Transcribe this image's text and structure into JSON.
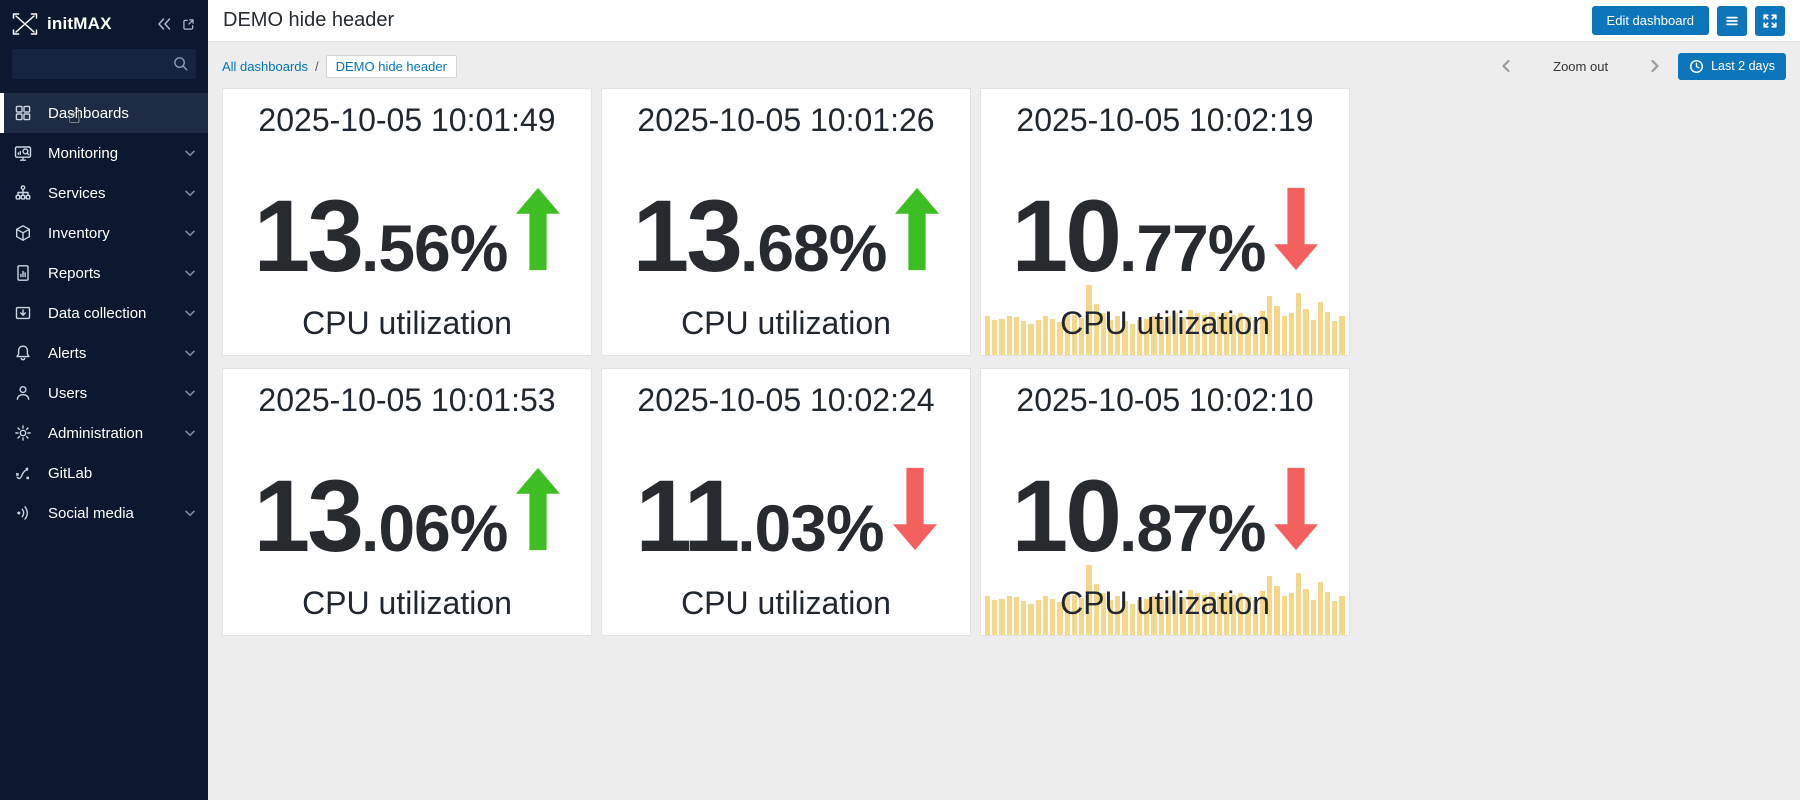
{
  "app": {
    "brand": "initMAX"
  },
  "colors": {
    "accent_blue": "#0d76ba",
    "link_blue": "#0275b8",
    "sidebar_bg": "#0c1830",
    "sidebar_active_bg": "#1d2b44",
    "content_bg": "#ededee",
    "value_text": "#272b30",
    "trend_green": "#3dbe23",
    "trend_red": "#f4605d",
    "bar_yellow": "#f5d78c"
  },
  "sidebar": {
    "search_placeholder": "",
    "items": [
      {
        "label": "Dashboards",
        "icon": "dashboards-icon",
        "active": true,
        "chevron": false
      },
      {
        "label": "Monitoring",
        "icon": "monitoring-icon",
        "active": false,
        "chevron": true
      },
      {
        "label": "Services",
        "icon": "services-icon",
        "active": false,
        "chevron": true
      },
      {
        "label": "Inventory",
        "icon": "inventory-icon",
        "active": false,
        "chevron": true
      },
      {
        "label": "Reports",
        "icon": "reports-icon",
        "active": false,
        "chevron": true
      },
      {
        "label": "Data collection",
        "icon": "data-collection-icon",
        "active": false,
        "chevron": true
      },
      {
        "label": "Alerts",
        "icon": "alerts-icon",
        "active": false,
        "chevron": true
      },
      {
        "label": "Users",
        "icon": "users-icon",
        "active": false,
        "chevron": true
      },
      {
        "label": "Administration",
        "icon": "administration-icon",
        "active": false,
        "chevron": true
      },
      {
        "label": "GitLab",
        "icon": "gitlab-icon",
        "active": false,
        "chevron": false
      },
      {
        "label": "Social media",
        "icon": "social-media-icon",
        "active": false,
        "chevron": true
      }
    ]
  },
  "header": {
    "title": "DEMO hide header",
    "edit_button": "Edit dashboard",
    "icons": [
      "menu-icon",
      "fullscreen-icon"
    ]
  },
  "breadcrumb": {
    "items": [
      "All dashboards",
      "DEMO hide header"
    ],
    "separator": "/"
  },
  "time_controls": {
    "zoom_out": "Zoom out",
    "range_label": "Last 2 days",
    "range_icon": "clock-icon"
  },
  "chart_data": [
    {
      "type": "single-stat",
      "title": "CPU utilization",
      "timestamp": "2025-10-05 10:01:49",
      "value": "13.56",
      "unit": "%",
      "trend": "up",
      "sparkline": false
    },
    {
      "type": "single-stat",
      "title": "CPU utilization",
      "timestamp": "2025-10-05 10:01:26",
      "value": "13.68",
      "unit": "%",
      "trend": "up",
      "sparkline": false
    },
    {
      "type": "single-stat",
      "title": "CPU utilization",
      "timestamp": "2025-10-05 10:02:19",
      "value": "10.77",
      "unit": "%",
      "trend": "down",
      "sparkline": true
    },
    {
      "type": "single-stat",
      "title": "CPU utilization",
      "timestamp": "2025-10-05 10:01:53",
      "value": "13.06",
      "unit": "%",
      "trend": "up",
      "sparkline": false
    },
    {
      "type": "single-stat",
      "title": "CPU utilization",
      "timestamp": "2025-10-05 10:02:24",
      "value": "11.03",
      "unit": "%",
      "trend": "down",
      "sparkline": false
    },
    {
      "type": "single-stat",
      "title": "CPU utilization",
      "timestamp": "2025-10-05 10:02:10",
      "value": "10.87",
      "unit": "%",
      "trend": "down",
      "sparkline": true
    }
  ],
  "sparkline": {
    "type": "bar",
    "color": "#f5d78c",
    "values": [
      0.56,
      0.5,
      0.52,
      0.56,
      0.54,
      0.48,
      0.44,
      0.5,
      0.55,
      0.52,
      0.47,
      0.58,
      0.57,
      0.53,
      1.0,
      0.73,
      0.6,
      0.5,
      0.56,
      0.48,
      0.44,
      0.5,
      0.52,
      0.56,
      0.5,
      0.55,
      0.6,
      0.54,
      0.64,
      0.6,
      0.57,
      0.61,
      0.55,
      0.62,
      0.57,
      0.6,
      0.54,
      0.5,
      0.63,
      0.84,
      0.7,
      0.56,
      0.6,
      0.88,
      0.66,
      0.5,
      0.76,
      0.62,
      0.48,
      0.56
    ]
  }
}
